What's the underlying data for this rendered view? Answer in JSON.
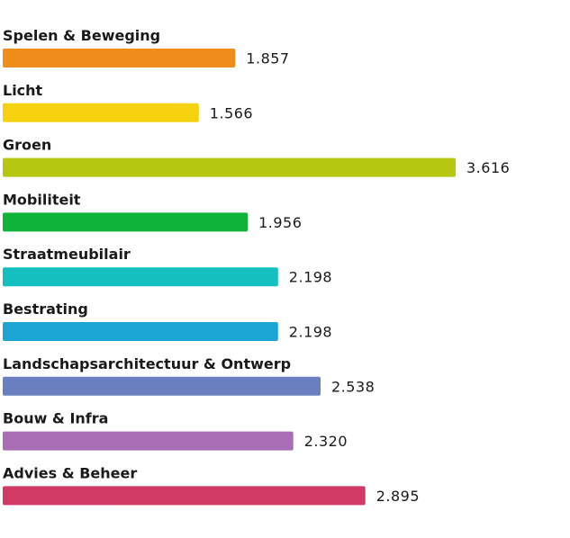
{
  "chart_data": {
    "type": "bar",
    "orientation": "horizontal",
    "categories": [
      "Spelen & Beweging",
      "Licht",
      "Groen",
      "Mobiliteit",
      "Straatmeubilair",
      "Bestrating",
      "Landschapsarchitectuur & Ontwerp",
      "Bouw & Infra",
      "Advies & Beheer"
    ],
    "values": [
      1857,
      1566,
      3616,
      1956,
      2198,
      2198,
      2538,
      2320,
      2895
    ],
    "value_labels": [
      "1.857",
      "1.566",
      "3.616",
      "1.956",
      "2.198",
      "2.198",
      "2.538",
      "2.320",
      "2.895"
    ],
    "colors": [
      "#f08c1a",
      "#f5d10f",
      "#b5c80f",
      "#10b33a",
      "#14bfbf",
      "#1aa5d5",
      "#6a7fc0",
      "#a86db5",
      "#d03a65"
    ],
    "grid": false,
    "legend": "none"
  }
}
